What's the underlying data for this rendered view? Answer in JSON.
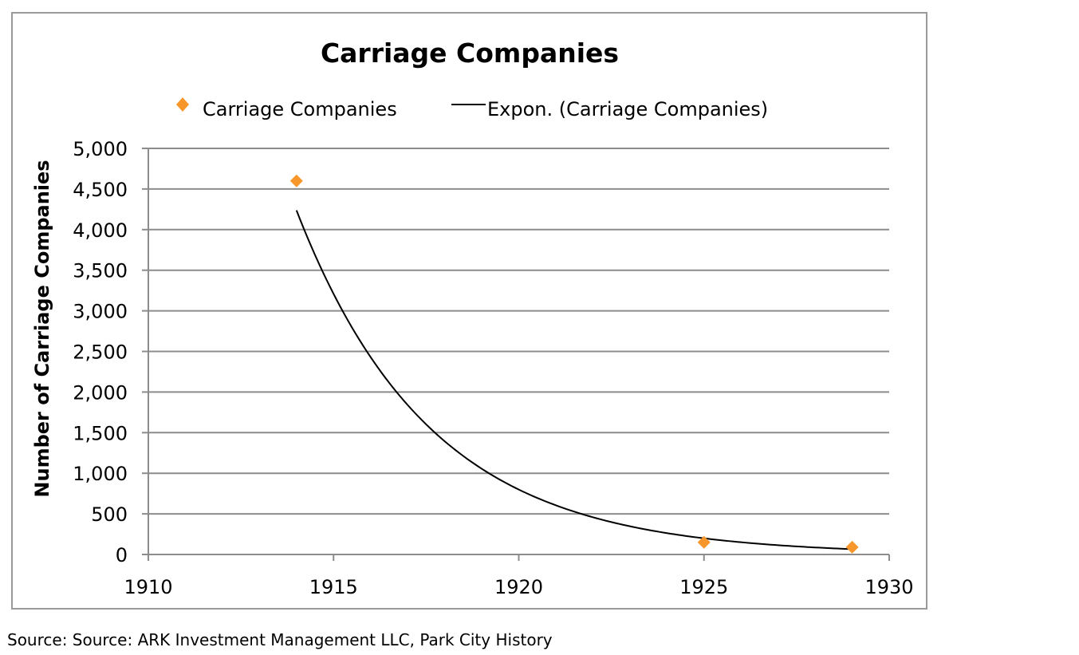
{
  "colors": {
    "marker": "#f7962b",
    "trendline": "#000000",
    "gridline": "#8c8c8c",
    "axis": "#8c8c8c",
    "frame": "#9a9a9a"
  },
  "source_note": "Source: Source: ARK Investment Management LLC, Park City History",
  "chart_data": {
    "type": "scatter",
    "title": "Carriage Companies",
    "xlabel": "",
    "ylabel": "Number of Carriage Companies",
    "xlim": [
      1910,
      1930
    ],
    "ylim": [
      0,
      5000
    ],
    "x_ticks": [
      1910,
      1915,
      1920,
      1925,
      1930
    ],
    "y_ticks": [
      0,
      500,
      1000,
      1500,
      2000,
      2500,
      3000,
      3500,
      4000,
      4500,
      5000
    ],
    "x_tick_labels": [
      "1910",
      "1915",
      "1920",
      "1925",
      "1930"
    ],
    "y_tick_labels": [
      "0",
      "500",
      "1,000",
      "1,500",
      "2,000",
      "2,500",
      "3,000",
      "3,500",
      "4,000",
      "4,500",
      "5,000"
    ],
    "grid": true,
    "legend_position": "top",
    "series": [
      {
        "name": "Carriage Companies",
        "kind": "scatter",
        "marker": "diamond",
        "points": [
          {
            "x": 1914,
            "y": 4600
          },
          {
            "x": 1925,
            "y": 150
          },
          {
            "x": 1929,
            "y": 90
          }
        ]
      },
      {
        "name": "Expon. (Carriage Companies)",
        "kind": "trendline",
        "model": "exponential",
        "x_range": [
          1914,
          1929
        ],
        "points": [
          {
            "x": 1914,
            "y": 4200
          },
          {
            "x": 1920,
            "y": 810
          },
          {
            "x": 1925,
            "y": 200
          },
          {
            "x": 1929,
            "y": 65
          }
        ]
      }
    ]
  }
}
